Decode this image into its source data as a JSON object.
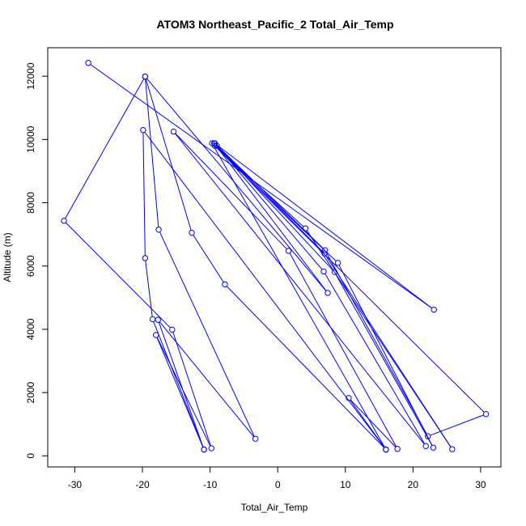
{
  "chart_data": {
    "type": "line",
    "title": "ATOM3 Northeast_Pacific_2 Total_Air_Temp",
    "xlabel": "Total_Air_Temp",
    "ylabel": "Altitude (m)",
    "xlim": [
      -34,
      33
    ],
    "ylim": [
      -350,
      12900
    ],
    "xticks": [
      -30,
      -20,
      -10,
      0,
      10,
      20,
      30
    ],
    "yticks": [
      0,
      2000,
      4000,
      6000,
      8000,
      10000,
      12000
    ],
    "color": "#0000ff",
    "marker": "open-circle",
    "points": [
      {
        "x": -28.0,
        "y": 12420
      },
      {
        "x": 23.1,
        "y": 4620
      },
      {
        "x": -9.3,
        "y": 9880
      },
      {
        "x": 7.0,
        "y": 6500
      },
      {
        "x": 22.2,
        "y": 620
      },
      {
        "x": 30.8,
        "y": 1320
      },
      {
        "x": -9.7,
        "y": 9880
      },
      {
        "x": 16.0,
        "y": 200
      },
      {
        "x": 10.5,
        "y": 1830
      },
      {
        "x": 17.7,
        "y": 220
      },
      {
        "x": 1.6,
        "y": 6480
      },
      {
        "x": -15.4,
        "y": 10250
      },
      {
        "x": 21.9,
        "y": 310
      },
      {
        "x": 6.8,
        "y": 5830
      },
      {
        "x": -9.0,
        "y": 9800
      },
      {
        "x": 8.4,
        "y": 5810
      },
      {
        "x": 23.0,
        "y": 260
      },
      {
        "x": 8.9,
        "y": 6100
      },
      {
        "x": -9.3,
        "y": 9800
      },
      {
        "x": 4.1,
        "y": 7190
      },
      {
        "x": 25.8,
        "y": 210
      },
      {
        "x": 6.9,
        "y": 6400
      },
      {
        "x": -9.4,
        "y": 9880
      },
      {
        "x": 7.4,
        "y": 5150
      },
      {
        "x": -19.6,
        "y": 11990
      },
      {
        "x": -12.7,
        "y": 7050
      },
      {
        "x": -7.8,
        "y": 5420
      },
      {
        "x": 16.0,
        "y": 200
      },
      {
        "x": -19.9,
        "y": 10300
      },
      {
        "x": -19.6,
        "y": 6250
      },
      {
        "x": -18.5,
        "y": 4320
      },
      {
        "x": -10.9,
        "y": 200
      },
      {
        "x": -17.7,
        "y": 4300
      },
      {
        "x": -3.3,
        "y": 540
      },
      {
        "x": -17.6,
        "y": 7150
      },
      {
        "x": -19.6,
        "y": 11990
      },
      {
        "x": -31.6,
        "y": 7430
      },
      {
        "x": -15.6,
        "y": 3990
      },
      {
        "x": -9.8,
        "y": 240
      },
      {
        "x": -18.0,
        "y": 3820
      },
      {
        "x": -10.9,
        "y": 200
      }
    ]
  }
}
